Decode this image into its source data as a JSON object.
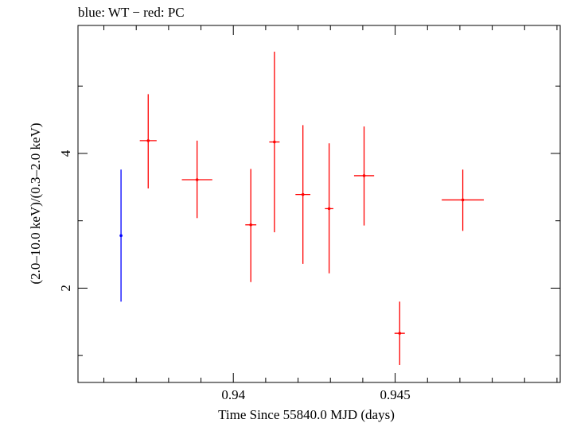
{
  "chart_data": {
    "type": "scatter",
    "title": "blue: WT − red: PC",
    "xlabel": "Time Since 55840.0 MJD (days)",
    "ylabel": "(2.0–10.0 keV)/(0.3–2.0 keV)",
    "xlim": [
      0.9352,
      0.9501
    ],
    "ylim": [
      0.6,
      5.9
    ],
    "x_ticks": [
      0.94,
      0.945
    ],
    "x_tick_labels": [
      "0.94",
      "0.945"
    ],
    "x_minor_ticks": [
      0.936,
      0.937,
      0.938,
      0.939,
      0.941,
      0.942,
      0.943,
      0.944,
      0.946,
      0.947,
      0.948,
      0.949,
      0.95
    ],
    "y_ticks": [
      2,
      4
    ],
    "y_tick_labels": [
      "2",
      "4"
    ],
    "y_minor_ticks": [
      1,
      3,
      5
    ],
    "series": [
      {
        "name": "WT",
        "color": "#0000ff",
        "points": [
          {
            "x": 0.93653,
            "xerr": 4e-05,
            "y": 2.78,
            "ylo": 1.8,
            "yhi": 3.76
          }
        ]
      },
      {
        "name": "PC",
        "color": "#ff0000",
        "points": [
          {
            "x": 0.93737,
            "xerr": 0.00026,
            "y": 4.19,
            "ylo": 3.48,
            "yhi": 4.88
          },
          {
            "x": 0.93888,
            "xerr": 0.00047,
            "y": 3.61,
            "ylo": 3.04,
            "yhi": 4.19
          },
          {
            "x": 0.94054,
            "xerr": 0.00017,
            "y": 2.94,
            "ylo": 2.09,
            "yhi": 3.77
          },
          {
            "x": 0.94127,
            "xerr": 0.00016,
            "y": 4.17,
            "ylo": 2.83,
            "yhi": 5.51
          },
          {
            "x": 0.94215,
            "xerr": 0.00023,
            "y": 3.39,
            "ylo": 2.36,
            "yhi": 4.42
          },
          {
            "x": 0.94296,
            "xerr": 0.00013,
            "y": 3.18,
            "ylo": 2.22,
            "yhi": 4.15
          },
          {
            "x": 0.94404,
            "xerr": 0.00031,
            "y": 3.67,
            "ylo": 2.93,
            "yhi": 4.4
          },
          {
            "x": 0.94514,
            "xerr": 0.00016,
            "y": 1.33,
            "ylo": 0.86,
            "yhi": 1.8
          },
          {
            "x": 0.94709,
            "xerr": 0.00065,
            "y": 3.31,
            "ylo": 2.85,
            "yhi": 3.76
          }
        ]
      }
    ]
  }
}
